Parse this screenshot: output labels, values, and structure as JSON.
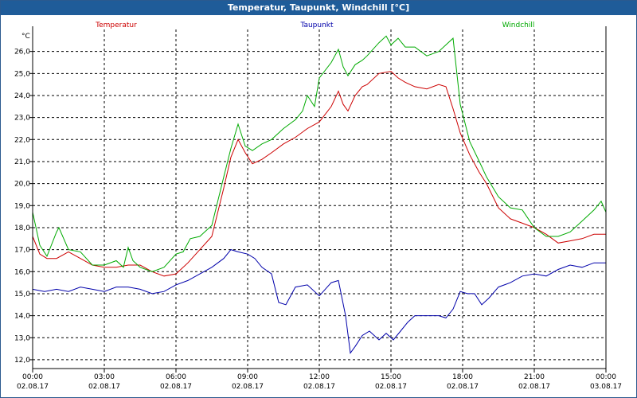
{
  "window": {
    "title": "Temperatur, Taupunkt, Windchill [°C]"
  },
  "chart_data": {
    "type": "line",
    "title": "Temperatur, Taupunkt, Windchill [°C]",
    "ylabel": "°C",
    "ylim": [
      11.6,
      27.0
    ],
    "yticks": [
      12.0,
      13.0,
      14.0,
      15.0,
      16.0,
      17.0,
      18.0,
      19.0,
      20.0,
      21.0,
      22.0,
      23.0,
      24.0,
      25.0,
      26.0
    ],
    "ytick_labels": [
      "12,0",
      "13,0",
      "14,0",
      "15,0",
      "16,0",
      "17,0",
      "18,0",
      "19,0",
      "20,0",
      "21,0",
      "22,0",
      "23,0",
      "24,0",
      "25,0",
      "26,0"
    ],
    "xlim": [
      0,
      24
    ],
    "xticks": [
      {
        "hour": 0,
        "time": "00:00",
        "date": "02.08.17"
      },
      {
        "hour": 3,
        "time": "03:00",
        "date": "02.08.17"
      },
      {
        "hour": 6,
        "time": "06:00",
        "date": "02.08.17"
      },
      {
        "hour": 9,
        "time": "09:00",
        "date": "02.08.17"
      },
      {
        "hour": 12,
        "time": "12:00",
        "date": "02.08.17"
      },
      {
        "hour": 15,
        "time": "15:00",
        "date": "02.08.17"
      },
      {
        "hour": 18,
        "time": "18:00",
        "date": "02.08.17"
      },
      {
        "hour": 21,
        "time": "21:00",
        "date": "02.08.17"
      },
      {
        "hour": 24,
        "time": "00:00",
        "date": "03.08.17"
      }
    ],
    "grid": true,
    "legend_placement": "top",
    "series": [
      {
        "name": "Temperatur",
        "color": "#cc0000",
        "x": [
          0,
          0.3,
          0.6,
          1,
          1.5,
          2,
          2.5,
          3,
          3.5,
          4,
          4.5,
          5,
          5.5,
          6,
          6.5,
          7,
          7.5,
          8,
          8.3,
          8.6,
          8.9,
          9.2,
          9.6,
          10,
          10.5,
          11,
          11.5,
          12,
          12.5,
          12.8,
          13,
          13.2,
          13.5,
          13.8,
          14,
          14.5,
          15,
          15.3,
          15.6,
          16,
          16.5,
          17,
          17.3,
          17.6,
          17.9,
          18.3,
          18.7,
          19,
          19.5,
          20,
          20.5,
          21,
          21.5,
          22,
          22.5,
          23,
          23.5,
          24
        ],
        "values": [
          17.6,
          16.8,
          16.6,
          16.6,
          16.9,
          16.6,
          16.3,
          16.2,
          16.2,
          16.3,
          16.3,
          16.0,
          15.8,
          15.9,
          16.4,
          17.0,
          17.6,
          19.8,
          21.2,
          22.0,
          21.4,
          20.9,
          21.1,
          21.4,
          21.8,
          22.1,
          22.5,
          22.8,
          23.5,
          24.2,
          23.6,
          23.3,
          24.0,
          24.4,
          24.5,
          25.0,
          25.1,
          24.8,
          24.6,
          24.4,
          24.3,
          24.5,
          24.4,
          23.4,
          22.3,
          21.3,
          20.5,
          20.0,
          18.9,
          18.4,
          18.2,
          18.0,
          17.7,
          17.3,
          17.4,
          17.5,
          17.7,
          17.7
        ]
      },
      {
        "name": "Taupunkt",
        "color": "#0000aa",
        "x": [
          0,
          0.5,
          1,
          1.5,
          2,
          2.5,
          3,
          3.5,
          4,
          4.5,
          5,
          5.5,
          6,
          6.5,
          7,
          7.5,
          8,
          8.3,
          8.6,
          9,
          9.3,
          9.6,
          10,
          10.3,
          10.6,
          11,
          11.5,
          12,
          12.5,
          12.8,
          13.1,
          13.3,
          13.5,
          13.8,
          14.1,
          14.5,
          14.8,
          15.1,
          15.4,
          15.7,
          16,
          16.5,
          17,
          17.3,
          17.6,
          17.9,
          18.2,
          18.5,
          18.8,
          19.1,
          19.5,
          20,
          20.5,
          21,
          21.5,
          22,
          22.5,
          23,
          23.5,
          24
        ],
        "values": [
          15.2,
          15.1,
          15.2,
          15.1,
          15.3,
          15.2,
          15.1,
          15.3,
          15.3,
          15.2,
          15.0,
          15.1,
          15.4,
          15.6,
          15.9,
          16.2,
          16.6,
          17.0,
          16.9,
          16.8,
          16.6,
          16.2,
          15.9,
          14.6,
          14.5,
          15.3,
          15.4,
          14.9,
          15.5,
          15.6,
          14.0,
          12.3,
          12.6,
          13.1,
          13.3,
          12.9,
          13.2,
          12.9,
          13.3,
          13.7,
          14.0,
          14.0,
          14.0,
          13.9,
          14.3,
          15.1,
          15.0,
          15.0,
          14.5,
          14.8,
          15.3,
          15.5,
          15.8,
          15.9,
          15.8,
          16.1,
          16.3,
          16.2,
          16.4,
          16.4
        ]
      },
      {
        "name": "Windchill",
        "color": "#00aa00",
        "x": [
          0,
          0.3,
          0.6,
          1,
          1.1,
          1.5,
          2,
          2.5,
          3,
          3.5,
          3.8,
          4,
          4.2,
          4.5,
          5,
          5.5,
          6,
          6.3,
          6.6,
          7,
          7.5,
          8,
          8.3,
          8.6,
          8.9,
          9.2,
          9.6,
          10,
          10.5,
          11,
          11.3,
          11.5,
          11.8,
          12,
          12.5,
          12.8,
          13,
          13.2,
          13.5,
          13.8,
          14,
          14.5,
          14.8,
          15,
          15.3,
          15.6,
          16,
          16.5,
          17,
          17.3,
          17.6,
          17.9,
          18.3,
          18.7,
          19,
          19.5,
          20,
          20.5,
          21,
          21.5,
          22,
          22.5,
          23,
          23.5,
          23.8,
          24
        ],
        "values": [
          18.7,
          17.2,
          16.7,
          17.8,
          18.0,
          17.0,
          16.9,
          16.3,
          16.3,
          16.5,
          16.2,
          17.1,
          16.5,
          16.2,
          16.0,
          16.2,
          16.8,
          16.9,
          17.5,
          17.6,
          18.1,
          20.3,
          21.6,
          22.7,
          21.7,
          21.5,
          21.8,
          22.0,
          22.5,
          22.9,
          23.3,
          24.0,
          23.5,
          24.8,
          25.5,
          26.1,
          25.3,
          24.9,
          25.4,
          25.6,
          25.8,
          26.4,
          26.7,
          26.3,
          26.6,
          26.2,
          26.2,
          25.8,
          26.0,
          26.3,
          26.6,
          23.6,
          21.9,
          21.0,
          20.3,
          19.4,
          18.9,
          18.8,
          18.0,
          17.6,
          17.6,
          17.8,
          18.3,
          18.8,
          19.2,
          18.7
        ]
      }
    ]
  }
}
